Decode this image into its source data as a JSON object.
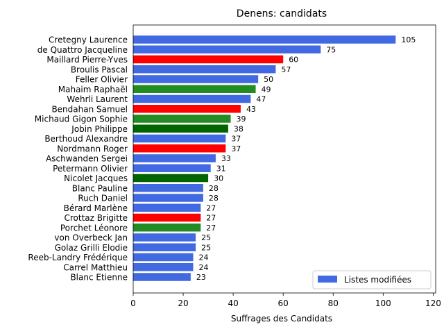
{
  "chart_data": {
    "type": "bar",
    "orientation": "horizontal",
    "title": "Denens: candidats",
    "xlabel": "Suffrages des Candidats",
    "ylabel": "",
    "xlim": [
      0,
      121
    ],
    "xticks": [
      "0",
      "20",
      "40",
      "60",
      "80",
      "100",
      "120"
    ],
    "grid": false,
    "legend": {
      "label": "Listes modifiées",
      "color": "#4169e1",
      "placement": "bottom-right"
    },
    "categories": [
      "Cretegny Laurence",
      "de Quattro Jacqueline",
      "Maillard Pierre-Yves",
      "Broulis Pascal",
      "Feller Olivier",
      "Mahaim Raphaël",
      "Wehrli Laurent",
      "Bendahan Samuel",
      "Michaud Gigon Sophie",
      "Jobin Philippe",
      "Berthoud Alexandre",
      "Nordmann Roger",
      "Aschwanden Sergei",
      "Petermann Olivier",
      "Nicolet Jacques",
      "Blanc Pauline",
      "Ruch Daniel",
      "Bérard Marlène",
      "Crottaz Brigitte",
      "Porchet Léonore",
      "von Overbeck Jan",
      "Golaz Grilli Elodie",
      "Reeb-Landry Frédérique",
      "Carrel Matthieu",
      "Blanc Etienne"
    ],
    "values": [
      105,
      75,
      60,
      57,
      50,
      49,
      47,
      43,
      39,
      38,
      37,
      37,
      33,
      31,
      30,
      28,
      28,
      27,
      27,
      27,
      25,
      25,
      24,
      24,
      23
    ],
    "colors": [
      "#4169e1",
      "#4169e1",
      "#ff0000",
      "#4169e1",
      "#4169e1",
      "#228b22",
      "#4169e1",
      "#ff0000",
      "#228b22",
      "#006400",
      "#4169e1",
      "#ff0000",
      "#4169e1",
      "#4169e1",
      "#006400",
      "#4169e1",
      "#4169e1",
      "#4169e1",
      "#ff0000",
      "#228b22",
      "#4169e1",
      "#4169e1",
      "#4169e1",
      "#4169e1",
      "#4169e1"
    ]
  }
}
